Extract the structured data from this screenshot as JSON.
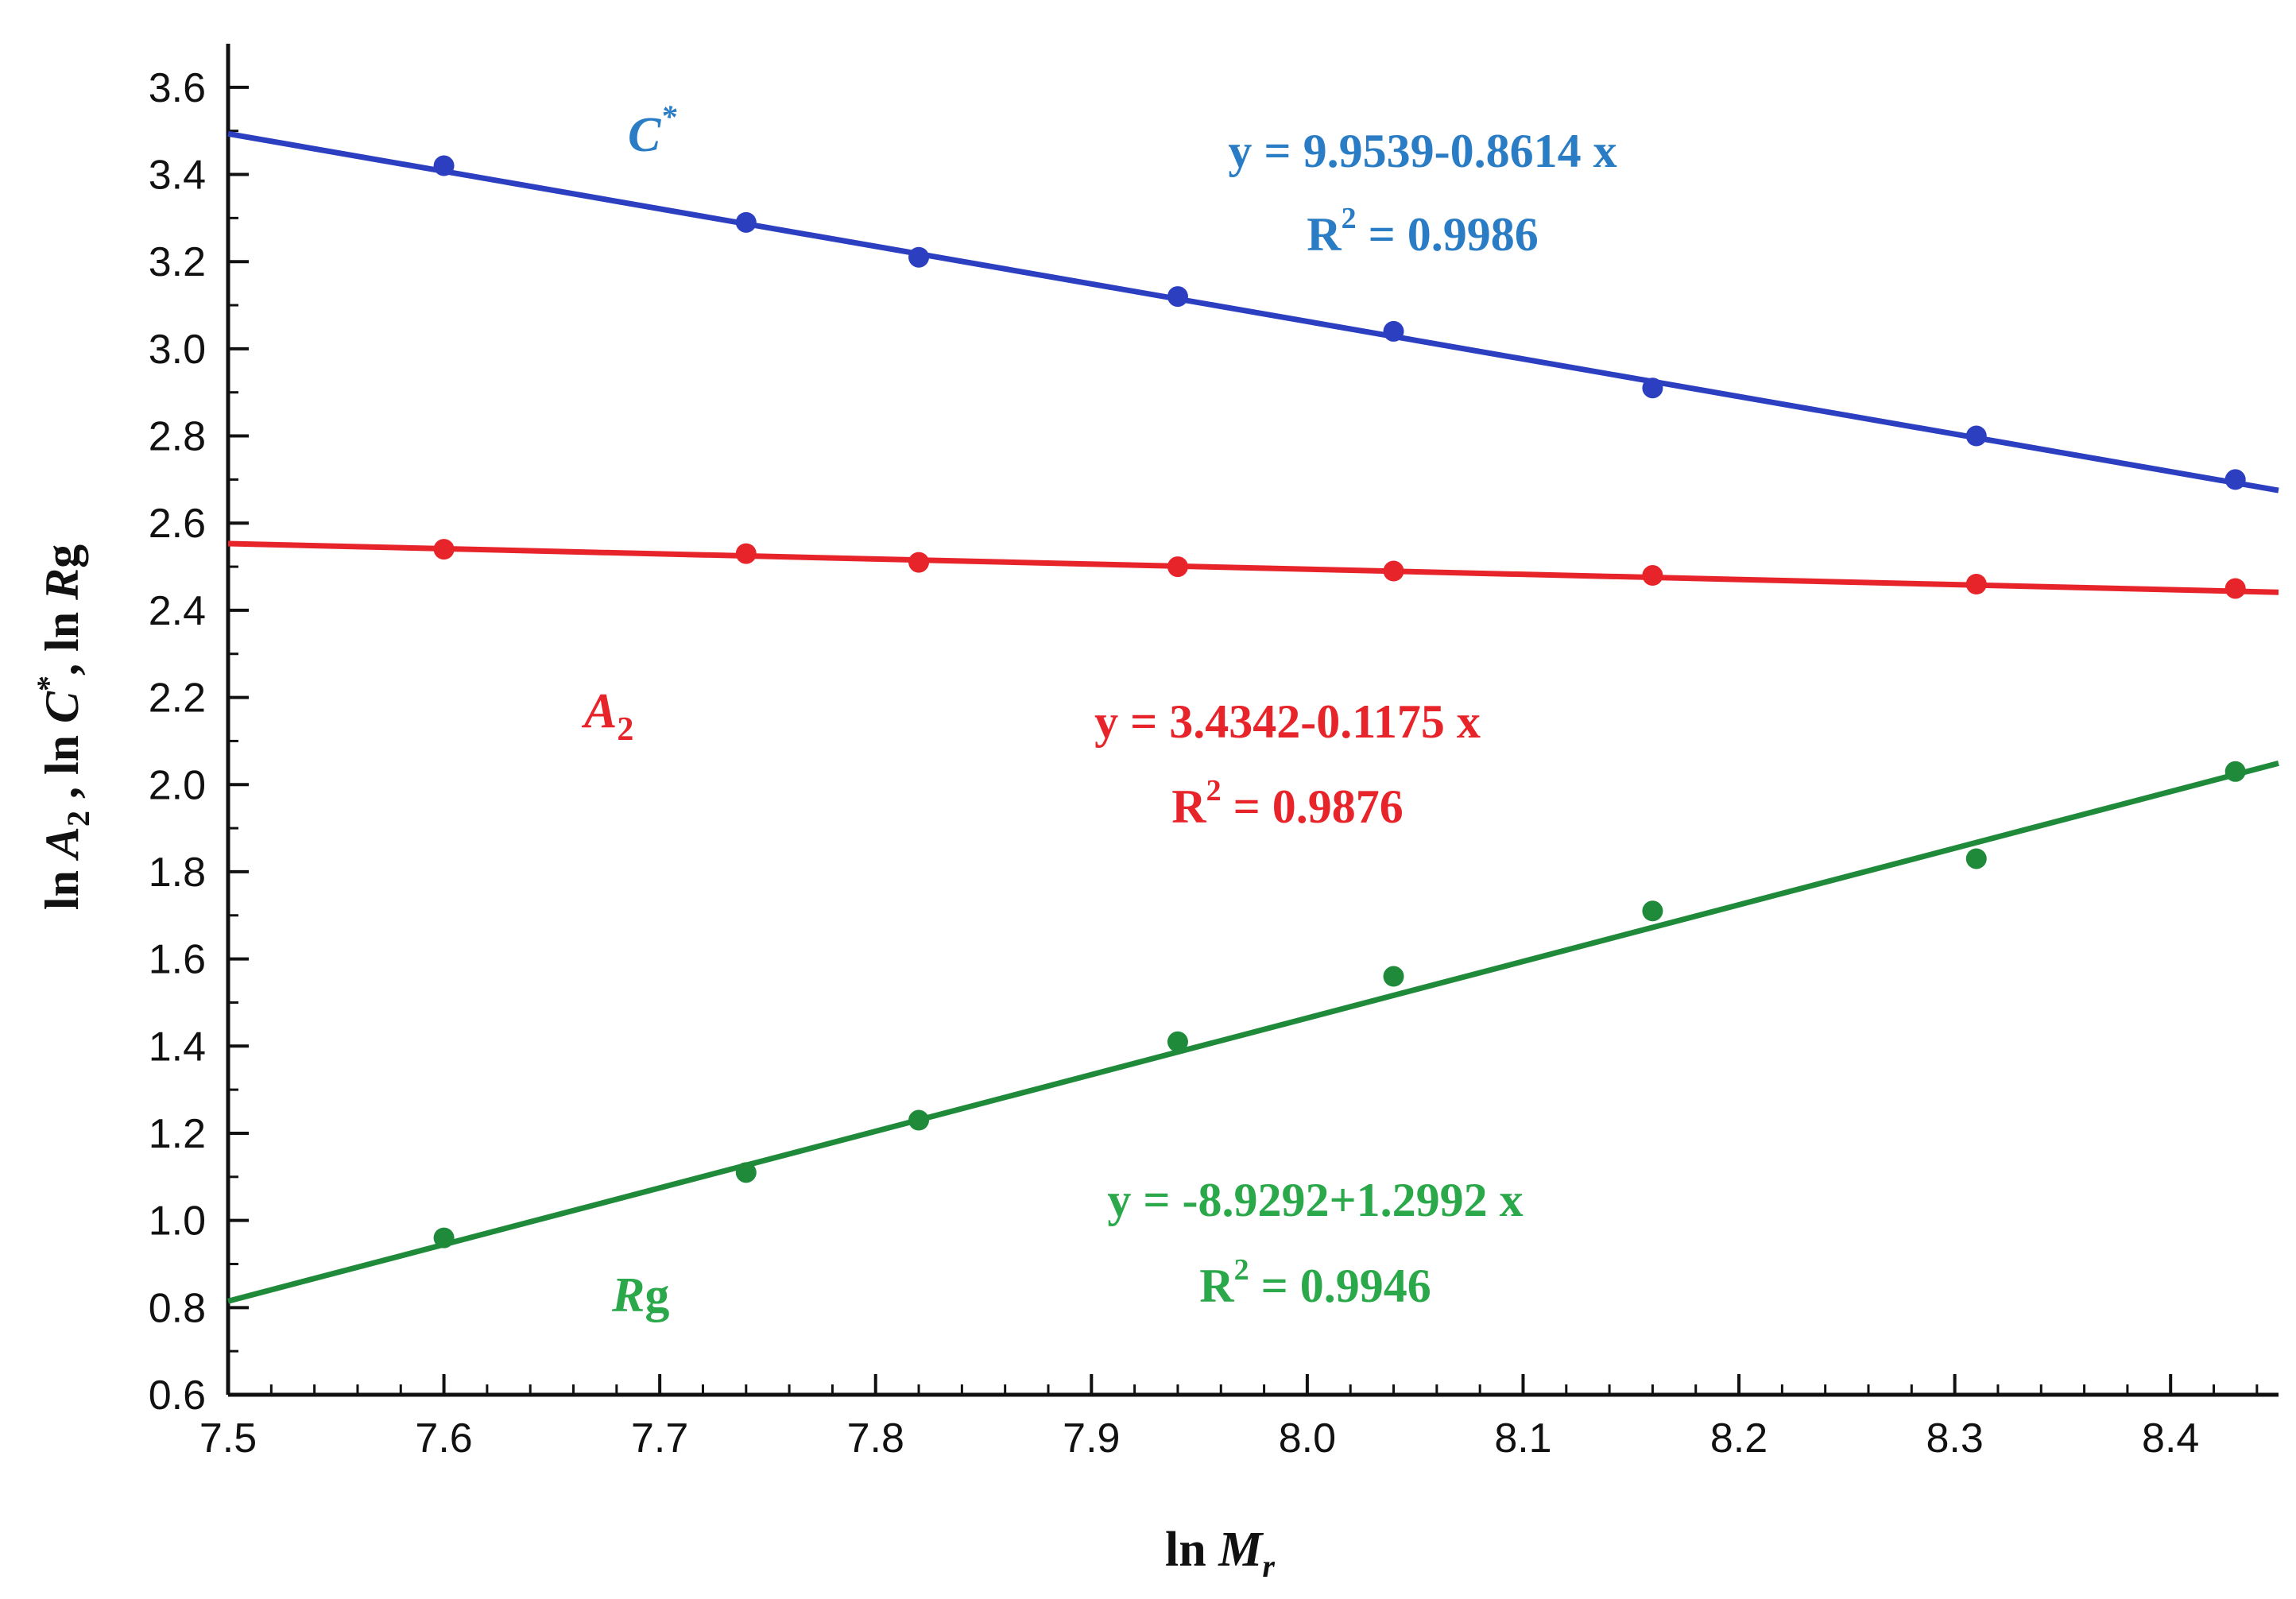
{
  "chart_data": {
    "type": "scatter",
    "xlabel": {
      "prefix": "ln ",
      "var": "M",
      "sub": "r"
    },
    "ylabel": {
      "p1": "ln ",
      "v1": "A",
      "s1": "2",
      "p2": " , ln ",
      "v2": "C",
      "sup2": "*",
      "p3": ", ln ",
      "v3": "R",
      "p4": "g"
    },
    "xlim": [
      7.5,
      8.45
    ],
    "ylim": [
      0.6,
      3.7
    ],
    "xticks": [
      7.5,
      7.6,
      7.7,
      7.8,
      7.9,
      8.0,
      8.1,
      8.2,
      8.3,
      8.4
    ],
    "xtick_labels": [
      "7.5",
      "7.6",
      "7.7",
      "7.8",
      "7.9",
      "8.0",
      "8.1",
      "8.2",
      "8.3",
      "8.4"
    ],
    "yticks": [
      0.6,
      0.8,
      1.0,
      1.2,
      1.4,
      1.6,
      1.8,
      2.0,
      2.2,
      2.4,
      2.6,
      2.8,
      3.0,
      3.2,
      3.4,
      3.6
    ],
    "ytick_labels": [
      "0.6",
      "0.8",
      "1.0",
      "1.2",
      "1.4",
      "1.6",
      "1.8",
      "2.0",
      "2.2",
      "2.4",
      "2.6",
      "2.8",
      "3.0",
      "3.2",
      "3.4",
      "3.6"
    ],
    "grid": false,
    "series": [
      {
        "id": "cstar",
        "color": "#2b3fc0",
        "label_color": "#2a7dc4",
        "label_var": "C",
        "label_sup": "*",
        "label_sub": "",
        "label_tail": "",
        "x": [
          7.6,
          7.74,
          7.82,
          7.94,
          8.04,
          8.16,
          8.31,
          8.43
        ],
        "y": [
          3.42,
          3.29,
          3.21,
          3.12,
          3.04,
          2.91,
          2.8,
          2.7
        ],
        "fit": {
          "intercept": 9.9539,
          "slope": -0.8614
        },
        "equation": "y = 9.9539-0.8614 x",
        "r2_label": "R",
        "r2_sup": "2",
        "r2_value": " = 0.9986"
      },
      {
        "id": "a2",
        "color": "#e8242b",
        "label_color": "#e8242b",
        "label_var": "A",
        "label_sup": "",
        "label_sub": "2",
        "label_tail": "",
        "x": [
          7.6,
          7.74,
          7.82,
          7.94,
          8.04,
          8.16,
          8.31,
          8.43
        ],
        "y": [
          2.54,
          2.53,
          2.51,
          2.5,
          2.49,
          2.48,
          2.46,
          2.45
        ],
        "fit": {
          "intercept": 3.4342,
          "slope": -0.1175
        },
        "equation": "y = 3.4342-0.1175 x",
        "r2_label": "R",
        "r2_sup": "2",
        "r2_value": " = 0.9876"
      },
      {
        "id": "rg",
        "color": "#1f8a3a",
        "label_color": "#2aa84a",
        "label_var": "R",
        "label_sup": "",
        "label_sub": "",
        "label_tail": "g",
        "x": [
          7.6,
          7.74,
          7.82,
          7.94,
          8.04,
          8.16,
          8.31,
          8.43
        ],
        "y": [
          0.96,
          1.11,
          1.23,
          1.41,
          1.56,
          1.71,
          1.83,
          2.03
        ],
        "fit": {
          "intercept": -8.9292,
          "slope": 1.2992
        },
        "equation": "y = -8.9292+1.2992 x",
        "r2_label": "R",
        "r2_sup": "2",
        "r2_value": " = 0.9946"
      }
    ]
  }
}
